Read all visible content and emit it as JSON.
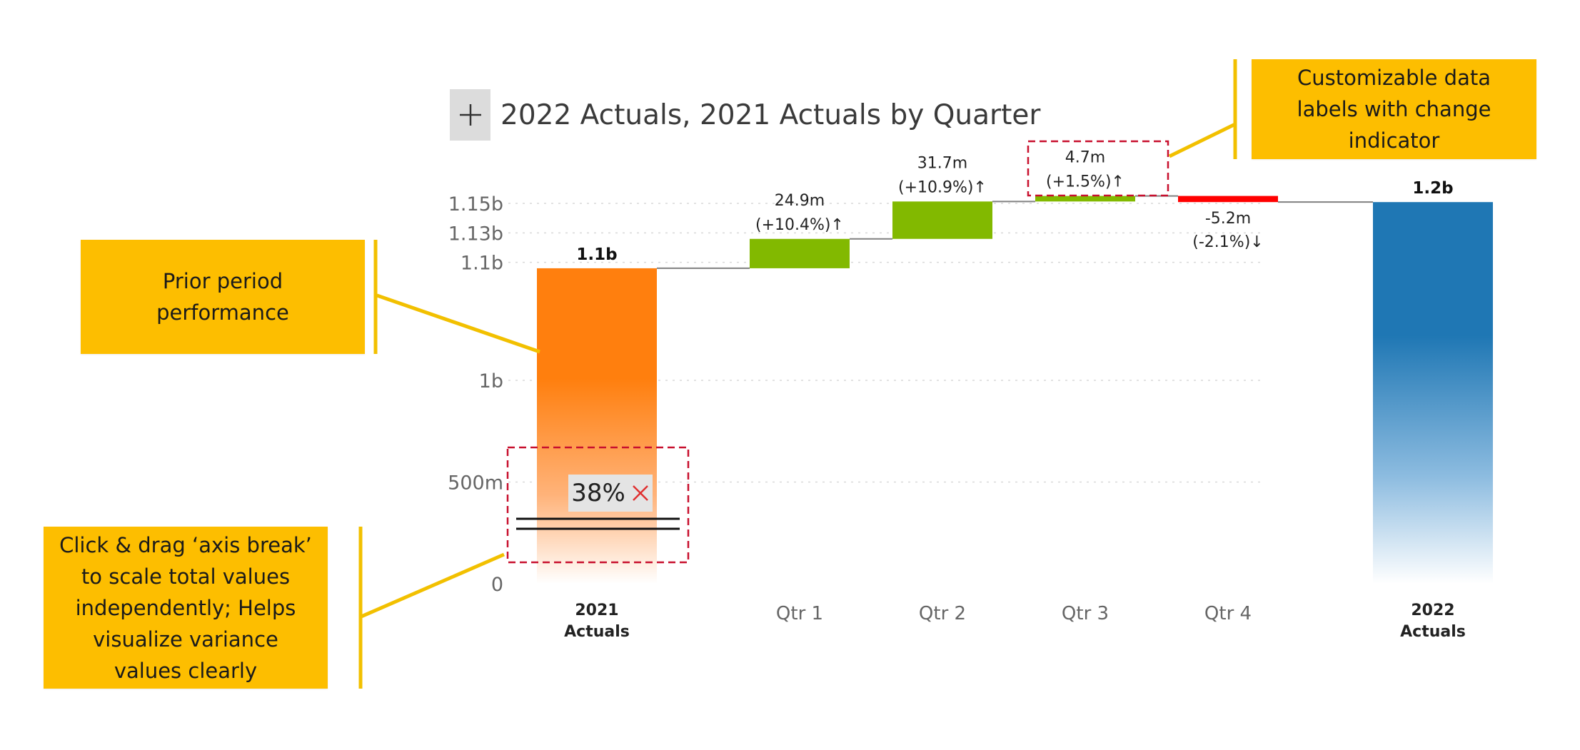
{
  "chart_data": {
    "type": "waterfall",
    "title": "2022 Actuals, 2021 Actuals by Quarter",
    "categories": [
      "2021 Actuals",
      "Qtr 1",
      "Qtr 2",
      "Qtr 3",
      "Qtr 4",
      "2022 Actuals"
    ],
    "steps": [
      {
        "category": "2021 Actuals",
        "kind": "total",
        "start": 0,
        "end": 1.095,
        "label": "1.1b",
        "change": ""
      },
      {
        "category": "Qtr 1",
        "kind": "increase",
        "start": 1.095,
        "end": 1.1199,
        "label": "24.9m",
        "change": "(+10.4%)↑"
      },
      {
        "category": "Qtr 2",
        "kind": "increase",
        "start": 1.1199,
        "end": 1.1516,
        "label": "31.7m",
        "change": "(+10.9%)↑"
      },
      {
        "category": "Qtr 3",
        "kind": "increase",
        "start": 1.1516,
        "end": 1.1563,
        "label": "4.7m",
        "change": "(+1.5%)↑"
      },
      {
        "category": "Qtr 4",
        "kind": "decrease",
        "start": 1.1563,
        "end": 1.1511,
        "label": "-5.2m",
        "change": "(-2.1%)↓"
      },
      {
        "category": "2022 Actuals",
        "kind": "total",
        "start": 0,
        "end": 1.1511,
        "label": "1.2b",
        "change": ""
      }
    ],
    "y_ticks": [
      {
        "value": 0,
        "label": "0"
      },
      {
        "value": 0.5,
        "label": "500m"
      },
      {
        "value": 1.0,
        "label": "1b"
      },
      {
        "value": 1.1,
        "label": "1.1b"
      },
      {
        "value": 1.125,
        "label": "1.13b"
      },
      {
        "value": 1.15,
        "label": "1.15b"
      }
    ],
    "axis_break": {
      "percent": "38%"
    },
    "grid": "dotted horizontal",
    "colors": {
      "total_2021": "#FF7F0E",
      "total_2022": "#1F77B4",
      "increase": "#82B900",
      "decrease": "#FF0000",
      "connector": "#808080",
      "annotation_box": "#C8102E"
    }
  },
  "callouts": {
    "prior_period": "Prior period\nperformance",
    "data_labels": "Customizable data\nlabels with change\nindicator",
    "axis_break": "Click & drag ‘axis break’\nto scale total values\nindependently; Helps\nvisualize variance\nvalues clearly",
    "color": "#FDBE00"
  },
  "icons": {
    "add": "plus-icon",
    "remove_break": "close-icon"
  }
}
